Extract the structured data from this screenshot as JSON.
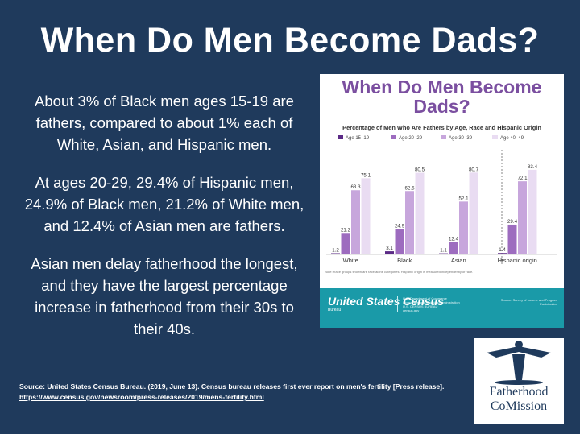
{
  "main_title": "When Do Men Become Dads?",
  "bullets": [
    "About 3% of Black men ages 15-19 are fathers, compared to about 1% each of White, Asian, and Hispanic men.",
    "At ages 20-29, 29.4% of Hispanic men, 24.9% of Black men, 21.2% of White men, and 12.4% of Asian men are fathers.",
    "Asian men delay fatherhood the longest, and they have the largest percentage increase in fatherhood from their 30s to their 40s."
  ],
  "card": {
    "title_line1": "When Do Men Become",
    "title_line2": "Dads?",
    "note": "Note: Race groups shown are race-alone categories. Hispanic origin is measured independently of race.",
    "census_logo": "United States Census",
    "census_bureau": "Bureau",
    "dept_line1": "U.S. Department of Commerce",
    "dept_line2": "Economics and Statistics Administration",
    "dept_line3": "U.S. CENSUS BUREAU",
    "dept_line4": "census.gov",
    "source_small": "Source: Survey of Income and Program Participation"
  },
  "chart_data": {
    "type": "bar",
    "title": "Percentage of Men Who Are Fathers by Age, Race and Hispanic Origin",
    "categories": [
      "White",
      "Black",
      "Asian",
      "Hispanic origin"
    ],
    "series": [
      {
        "name": "Age 15–19",
        "values": [
          1.2,
          3.1,
          1.1,
          1.4
        ]
      },
      {
        "name": "Age 20–29",
        "values": [
          21.2,
          24.9,
          12.4,
          29.4
        ]
      },
      {
        "name": "Age 30–39",
        "values": [
          63.3,
          62.5,
          52.1,
          72.1
        ]
      },
      {
        "name": "Age 40–49",
        "values": [
          75.1,
          80.5,
          80.7,
          83.4
        ]
      }
    ],
    "colors": [
      "#5b2a86",
      "#9d6cbf",
      "#c7a6dc",
      "#e9dcf2"
    ],
    "ylim": [
      0,
      100
    ],
    "legend_position": "top",
    "grid": false
  },
  "source": {
    "text": "Source: United States Census Bureau. (2019, June 13). Census bureau releases first ever report on men's fertility [Press release]. ",
    "url": "https://www.census.gov/newsroom/press-releases/2019/mens-fertility.html"
  },
  "logo": {
    "line1": "Fatherhood",
    "line2": "CoMission"
  }
}
